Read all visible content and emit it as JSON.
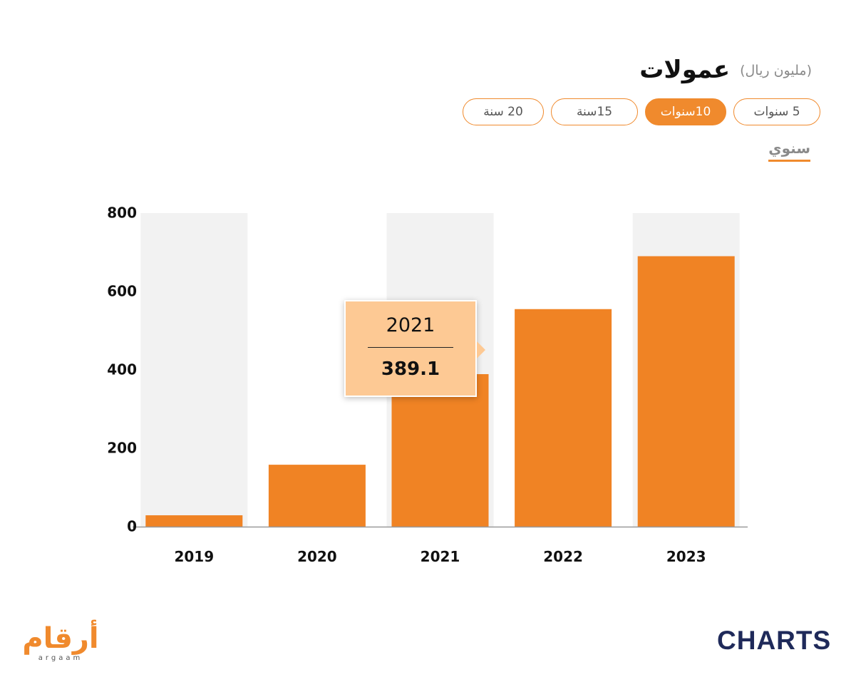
{
  "header": {
    "title": "عمولات",
    "unit": "(مليون ريال)"
  },
  "periods": [
    {
      "label": "5 سنوات",
      "active": false
    },
    {
      "label": "10سنوات",
      "active": true
    },
    {
      "label": "15سنة",
      "active": false
    },
    {
      "label": "20 سنة",
      "active": false
    }
  ],
  "tab_label": "سنوي",
  "tooltip": {
    "year": "2021",
    "value": "389.1"
  },
  "brand": {
    "argaam_ar": "أرقام",
    "argaam_en": "argaam",
    "charts": "CHARTS"
  },
  "colors": {
    "bar": "#f08324",
    "band": "#f2f2f2",
    "accent": "#f08a2d",
    "tooltip_bg": "#fdc994"
  },
  "chart_data": {
    "type": "bar",
    "categories": [
      "2019",
      "2020",
      "2021",
      "2022",
      "2023"
    ],
    "values": [
      29,
      158,
      389.1,
      555,
      690
    ],
    "ylim": [
      0,
      800
    ],
    "yticks": [
      0,
      200,
      400,
      600,
      800
    ],
    "highlighted_category": "2021"
  }
}
